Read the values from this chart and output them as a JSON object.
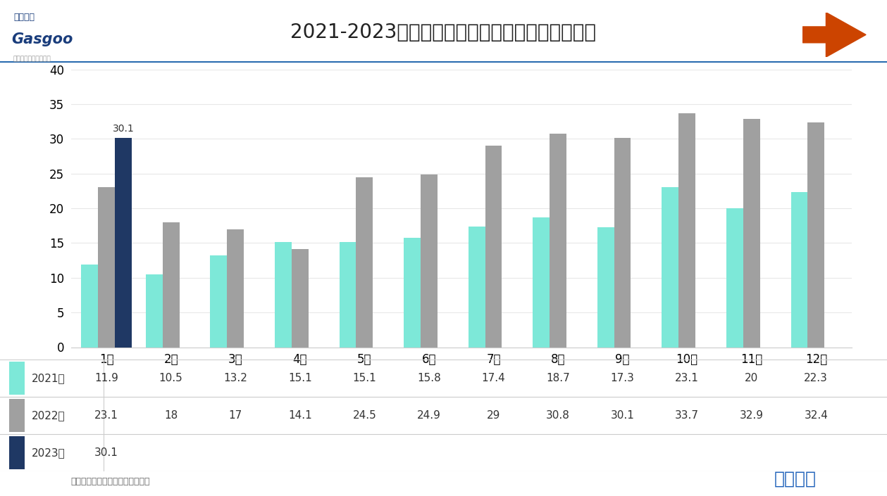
{
  "title": "2021-2023年汽车月度出口量情况（单位：万辆）",
  "months": [
    "1月",
    "2月",
    "3月",
    "4月",
    "5月",
    "6月",
    "7月",
    "8月",
    "9月",
    "10月",
    "11月",
    "12月"
  ],
  "data_2021": [
    11.9,
    10.5,
    13.2,
    15.1,
    15.1,
    15.8,
    17.4,
    18.7,
    17.3,
    23.1,
    20,
    22.3
  ],
  "data_2022": [
    23.1,
    18,
    17,
    14.1,
    24.5,
    24.9,
    29,
    30.8,
    30.1,
    33.7,
    32.9,
    32.4
  ],
  "data_2023": [
    30.1,
    null,
    null,
    null,
    null,
    null,
    null,
    null,
    null,
    null,
    null,
    null
  ],
  "color_2021": "#7de8d8",
  "color_2022": "#a0a0a0",
  "color_2023": "#1f3864",
  "ylim": [
    0,
    40
  ],
  "yticks": [
    0,
    5,
    10,
    15,
    20,
    25,
    30,
    35,
    40
  ],
  "label_2021": "2021年",
  "label_2022": "2022年",
  "label_2023": "2023年",
  "source_text": "数据来源：中汽协；盖世汽车整理",
  "watermark_text": "数读车市",
  "annotation_value": "30.1",
  "annotation_month_index": 0,
  "background_color": "#ffffff",
  "title_color": "#222222",
  "title_fontsize": 20,
  "axis_fontsize": 12,
  "table_fontsize": 11,
  "bar_width": 0.26,
  "table_data_2021": [
    "11.9",
    "10.5",
    "13.2",
    "15.1",
    "15.1",
    "15.8",
    "17.4",
    "18.7",
    "17.3",
    "23.1",
    "20",
    "22.3"
  ],
  "table_data_2022": [
    "23.1",
    "18",
    "17",
    "14.1",
    "24.5",
    "24.9",
    "29",
    "30.8",
    "30.1",
    "33.7",
    "32.9",
    "32.4"
  ],
  "table_data_2023": [
    "30.1",
    "",
    "",
    "",
    "",
    "",
    "",
    "",
    "",
    "",
    "",
    ""
  ],
  "header_line_color": "#2b6cb0",
  "grid_color": "#e8e8e8",
  "table_line_color": "#cccccc",
  "source_color": "#666666",
  "watermark_color": "#1a5eb8",
  "arrow_color": "#cc4400"
}
